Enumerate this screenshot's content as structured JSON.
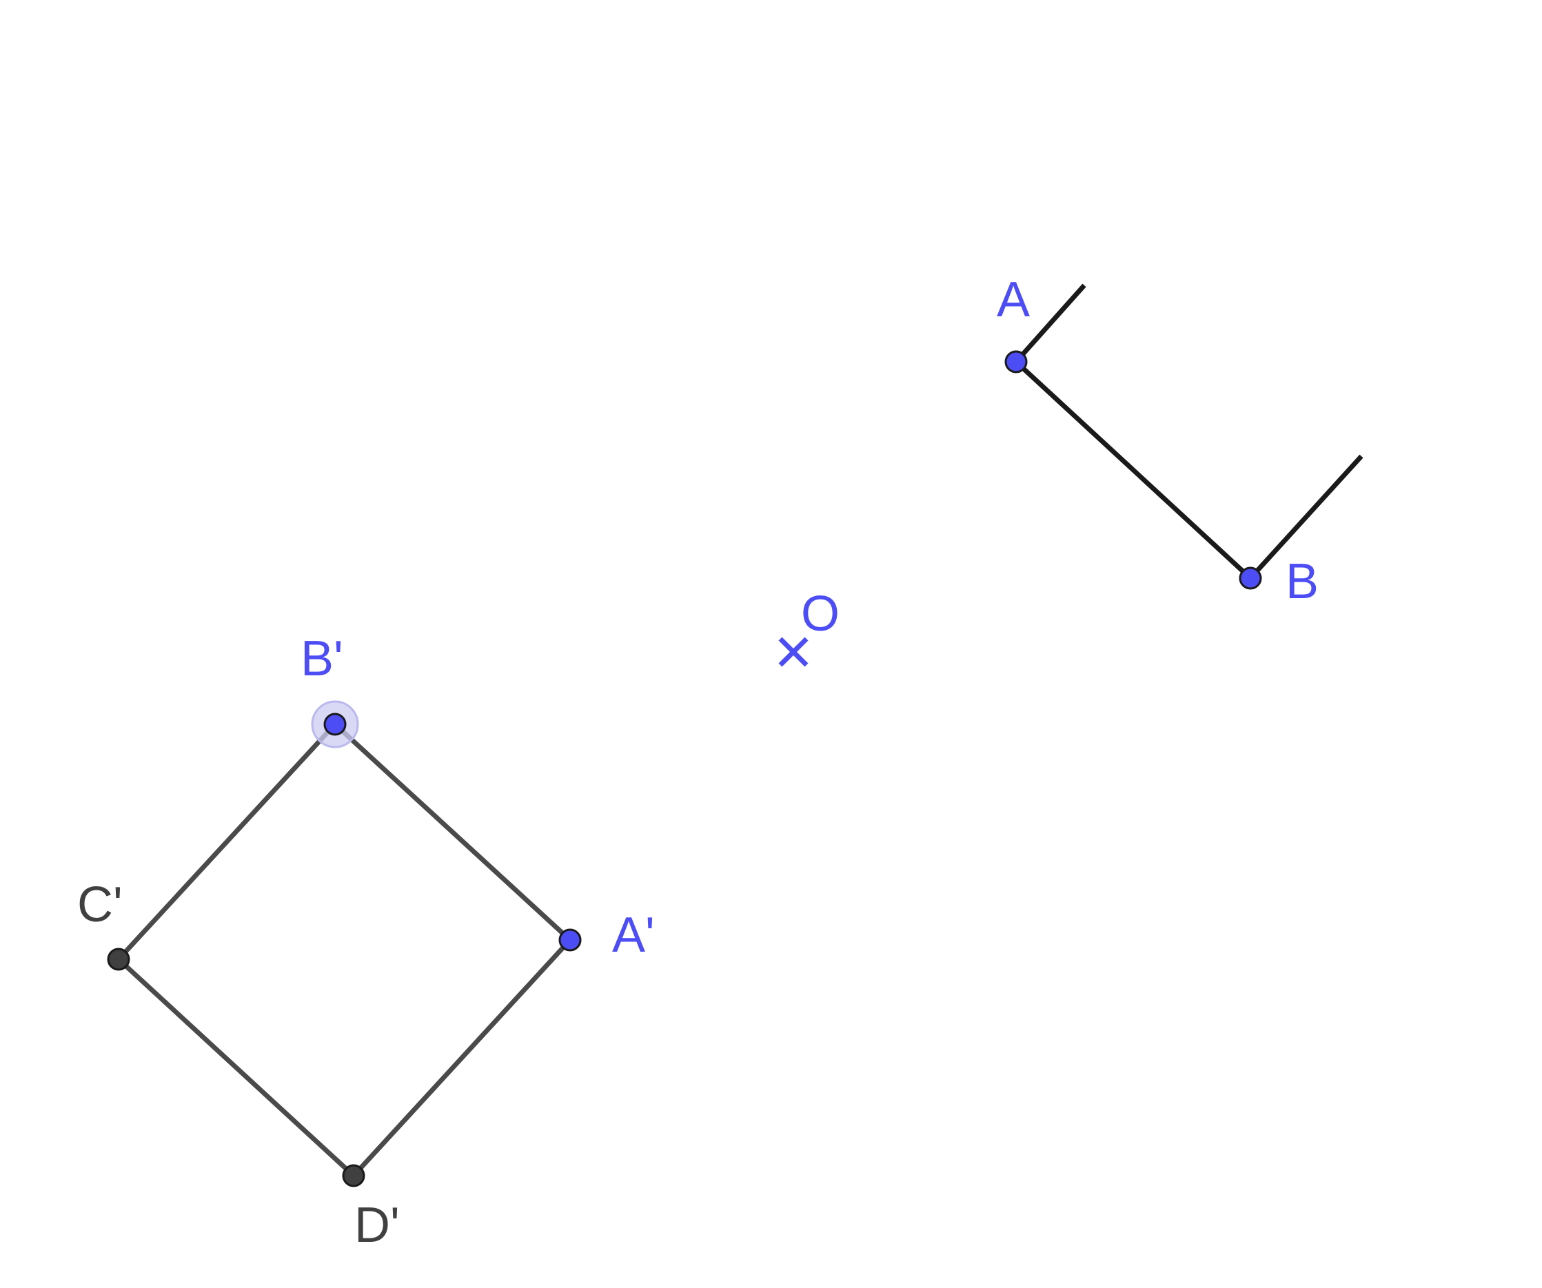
{
  "colors": {
    "free_point": "#4d4df5",
    "dependent_point": "#404040",
    "original_segment": "#1a1a1a",
    "image_segment": "#4a4a4a",
    "free_label": "#4d4df5",
    "dependent_label": "#404040",
    "highlight": "#ccccf2"
  },
  "center": {
    "label": "O",
    "marker": "cross-icon"
  },
  "original_points": {
    "A": {
      "label": "A"
    },
    "B": {
      "label": "B"
    }
  },
  "image_points": {
    "A_prime": {
      "label": "A'"
    },
    "B_prime": {
      "label": "B'",
      "selected": true
    },
    "C_prime": {
      "label": "C'"
    },
    "D_prime": {
      "label": "D'"
    }
  }
}
